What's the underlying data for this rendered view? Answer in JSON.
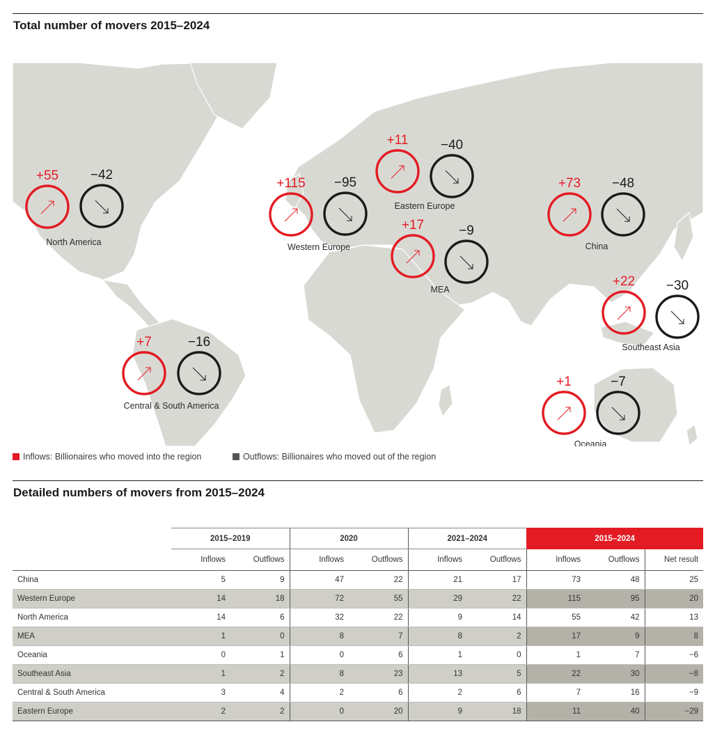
{
  "map_section": {
    "title": "Total number of movers 2015–2024"
  },
  "table_section": {
    "title": "Detailed numbers of movers from 2015–2024"
  },
  "legend": {
    "inflows_label": "Inflows: Billionaires who moved into the region",
    "outflows_label": "Outflows: Billionaires who moved out of the region",
    "inflow_color": "#e31b23",
    "outflow_color": "#555555"
  },
  "chart_data": {
    "type": "table",
    "title": "Total number of movers 2015–2024",
    "regions": [
      {
        "name": "North America",
        "inflow_label": "+55",
        "outflow_label": "−42",
        "inflows": 55,
        "outflows": 42
      },
      {
        "name": "Western Europe",
        "inflow_label": "+115",
        "outflow_label": "−95",
        "inflows": 115,
        "outflows": 95
      },
      {
        "name": "Eastern Europe",
        "inflow_label": "+11",
        "outflow_label": "−40",
        "inflows": 11,
        "outflows": 40
      },
      {
        "name": "MEA",
        "inflow_label": "+17",
        "outflow_label": "−9",
        "inflows": 17,
        "outflows": 9
      },
      {
        "name": "China",
        "inflow_label": "+73",
        "outflow_label": "−48",
        "inflows": 73,
        "outflows": 48
      },
      {
        "name": "Southeast Asia",
        "inflow_label": "+22",
        "outflow_label": "−30",
        "inflows": 22,
        "outflows": 30
      },
      {
        "name": "Central & South America",
        "inflow_label": "+7",
        "outflow_label": "−16",
        "inflows": 7,
        "outflows": 16
      },
      {
        "name": "Oceania",
        "inflow_label": "+1",
        "outflow_label": "−7",
        "inflows": 1,
        "outflows": 7
      }
    ],
    "table": {
      "period_headers": [
        "2015–2019",
        "2020",
        "2021–2024",
        "2015–2024"
      ],
      "column_headers": [
        "Inflows",
        "Outflows",
        "Inflows",
        "Outflows",
        "Inflows",
        "Outflows",
        "Inflows",
        "Outflows",
        "Net result"
      ],
      "rows": [
        {
          "region": "China",
          "values": [
            "5",
            "9",
            "47",
            "22",
            "21",
            "17",
            "73",
            "48",
            "25"
          ]
        },
        {
          "region": "Western Europe",
          "values": [
            "14",
            "18",
            "72",
            "55",
            "29",
            "22",
            "115",
            "95",
            "20"
          ]
        },
        {
          "region": "North America",
          "values": [
            "14",
            "6",
            "32",
            "22",
            "9",
            "14",
            "55",
            "42",
            "13"
          ]
        },
        {
          "region": "MEA",
          "values": [
            "1",
            "0",
            "8",
            "7",
            "8",
            "2",
            "17",
            "9",
            "8"
          ]
        },
        {
          "region": "Oceania",
          "values": [
            "0",
            "1",
            "0",
            "6",
            "1",
            "0",
            "1",
            "7",
            "−6"
          ]
        },
        {
          "region": "Southeast Asia",
          "values": [
            "1",
            "2",
            "8",
            "23",
            "13",
            "5",
            "22",
            "30",
            "−8"
          ]
        },
        {
          "region": "Central & South America",
          "values": [
            "3",
            "4",
            "2",
            "6",
            "2",
            "6",
            "7",
            "16",
            "−9"
          ]
        },
        {
          "region": "Eastern Europe",
          "values": [
            "2",
            "2",
            "0",
            "20",
            "9",
            "18",
            "11",
            "40",
            "−29"
          ]
        }
      ]
    }
  }
}
